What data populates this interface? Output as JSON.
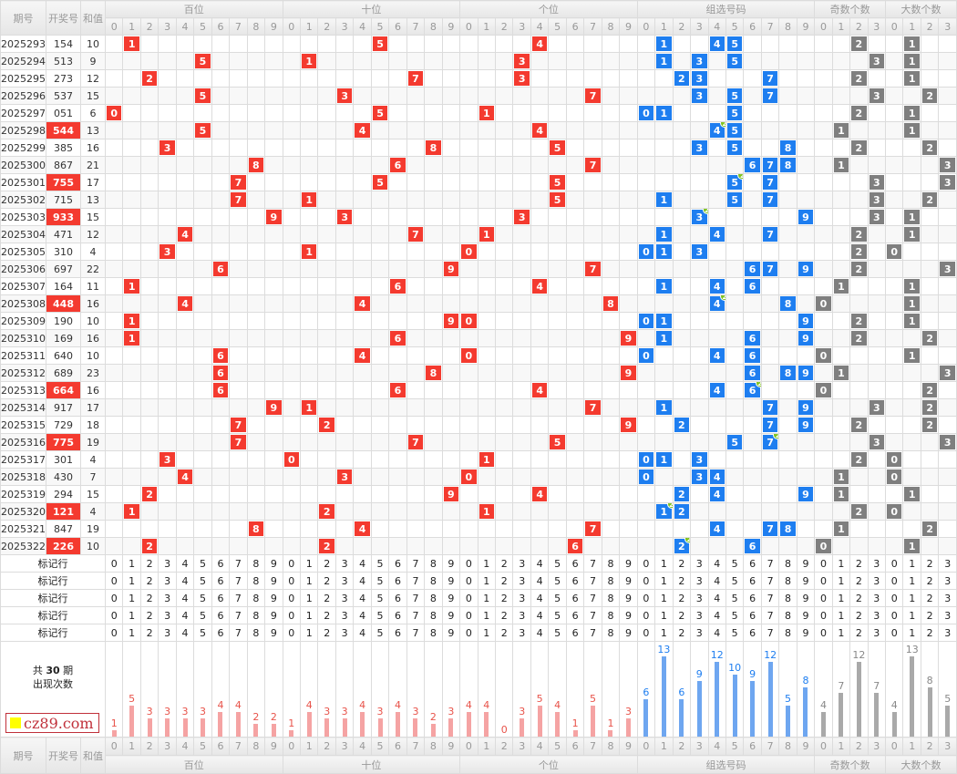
{
  "header": {
    "period": "期号",
    "draw": "开奖号",
    "sum": "和值",
    "groups": [
      "百位",
      "十位",
      "个位",
      "组选号码",
      "奇数个数",
      "大数个数"
    ]
  },
  "rows": [
    {
      "period": "2025293",
      "draw": "154",
      "sum": "10"
    },
    {
      "period": "2025294",
      "draw": "513",
      "sum": "9"
    },
    {
      "period": "2025295",
      "draw": "273",
      "sum": "12"
    },
    {
      "period": "2025296",
      "draw": "537",
      "sum": "15"
    },
    {
      "period": "2025297",
      "draw": "051",
      "sum": "6"
    },
    {
      "period": "2025298",
      "draw": "544",
      "sum": "13"
    },
    {
      "period": "2025299",
      "draw": "385",
      "sum": "16"
    },
    {
      "period": "2025300",
      "draw": "867",
      "sum": "21"
    },
    {
      "period": "2025301",
      "draw": "755",
      "sum": "17"
    },
    {
      "period": "2025302",
      "draw": "715",
      "sum": "13"
    },
    {
      "period": "2025303",
      "draw": "933",
      "sum": "15"
    },
    {
      "period": "2025304",
      "draw": "471",
      "sum": "12"
    },
    {
      "period": "2025305",
      "draw": "310",
      "sum": "4"
    },
    {
      "period": "2025306",
      "draw": "697",
      "sum": "22"
    },
    {
      "period": "2025307",
      "draw": "164",
      "sum": "11"
    },
    {
      "period": "2025308",
      "draw": "448",
      "sum": "16"
    },
    {
      "period": "2025309",
      "draw": "190",
      "sum": "10"
    },
    {
      "period": "2025310",
      "draw": "169",
      "sum": "16"
    },
    {
      "period": "2025311",
      "draw": "640",
      "sum": "10"
    },
    {
      "period": "2025312",
      "draw": "689",
      "sum": "23"
    },
    {
      "period": "2025313",
      "draw": "664",
      "sum": "16"
    },
    {
      "period": "2025314",
      "draw": "917",
      "sum": "17"
    },
    {
      "period": "2025315",
      "draw": "729",
      "sum": "18"
    },
    {
      "period": "2025316",
      "draw": "775",
      "sum": "19"
    },
    {
      "period": "2025317",
      "draw": "301",
      "sum": "4"
    },
    {
      "period": "2025318",
      "draw": "430",
      "sum": "7"
    },
    {
      "period": "2025319",
      "draw": "294",
      "sum": "15"
    },
    {
      "period": "2025320",
      "draw": "121",
      "sum": "4"
    },
    {
      "period": "2025321",
      "draw": "847",
      "sum": "19"
    },
    {
      "period": "2025322",
      "draw": "226",
      "sum": "10"
    }
  ],
  "mark_row_label": "标记行",
  "mark_row_count": 5,
  "summary": {
    "prefix": "共",
    "count": "30",
    "suffix": "期",
    "line2": "出现次数"
  },
  "counts": {
    "hundreds": [
      1,
      5,
      3,
      3,
      3,
      3,
      4,
      4,
      2,
      2
    ],
    "tens": [
      1,
      4,
      3,
      3,
      4,
      3,
      4,
      3,
      2,
      3
    ],
    "units": [
      4,
      4,
      0,
      3,
      5,
      4,
      1,
      5,
      1,
      3
    ],
    "group": [
      6,
      13,
      6,
      9,
      12,
      10,
      9,
      12,
      5,
      8
    ],
    "odd": [
      4,
      7,
      12,
      7
    ],
    "big": [
      4,
      13,
      8,
      5
    ]
  },
  "watermark": "cz89.com",
  "colors": {
    "red": "#f43a2f",
    "blue": "#1e7ef0",
    "gray": "#7f7f7f",
    "badge": "#7fc31c",
    "bar_red": "#f5a3a3",
    "bar_blue": "#6ea6f0",
    "bar_gray": "#a9a9a9",
    "label_red": "#e8534a",
    "label_blue": "#1e7ef0",
    "label_gray": "#888888"
  }
}
